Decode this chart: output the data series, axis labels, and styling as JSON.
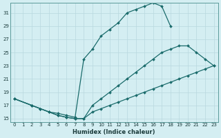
{
  "xlabel": "Humidex (Indice chaleur)",
  "bg_color": "#d4eef2",
  "grid_color": "#b8d8de",
  "line_color": "#1a6b6b",
  "xlim": [
    -0.5,
    23.5
  ],
  "ylim": [
    14.5,
    32.5
  ],
  "yticks": [
    15,
    17,
    19,
    21,
    23,
    25,
    27,
    29,
    31
  ],
  "xticks": [
    0,
    1,
    2,
    3,
    4,
    5,
    6,
    7,
    8,
    9,
    10,
    11,
    12,
    13,
    14,
    15,
    16,
    17,
    18,
    19,
    20,
    21,
    22,
    23
  ],
  "lines": [
    {
      "x": [
        0,
        2,
        3,
        4,
        5,
        6,
        7,
        8,
        9,
        10,
        11,
        12,
        13,
        14,
        15,
        16,
        17,
        18
      ],
      "y": [
        18,
        17,
        16.5,
        16,
        15.8,
        15.5,
        15.2,
        24,
        25.5,
        27.5,
        28.5,
        29.5,
        31,
        31.5,
        32,
        32.5,
        32,
        29
      ]
    },
    {
      "x": [
        0,
        2,
        3,
        4,
        5,
        6,
        7,
        8,
        9,
        10,
        11,
        12,
        13,
        14,
        15,
        16,
        17,
        18,
        19,
        20,
        21,
        22,
        23
      ],
      "y": [
        18,
        17,
        16.5,
        16,
        15.5,
        15.2,
        15,
        15,
        17,
        18,
        19,
        20,
        21,
        22,
        23,
        24,
        25,
        25.5,
        26,
        26,
        25,
        24,
        23
      ]
    },
    {
      "x": [
        0,
        2,
        3,
        4,
        5,
        6,
        7,
        8,
        9,
        10,
        11,
        12,
        13,
        14,
        15,
        16,
        17,
        18,
        19,
        20,
        21,
        22,
        23
      ],
      "y": [
        18,
        17,
        16.5,
        16,
        15.5,
        15.2,
        15,
        15,
        16,
        16.5,
        17,
        17.5,
        18,
        18.5,
        19,
        19.5,
        20,
        20.5,
        21,
        21.5,
        22,
        22.5,
        23
      ]
    }
  ]
}
